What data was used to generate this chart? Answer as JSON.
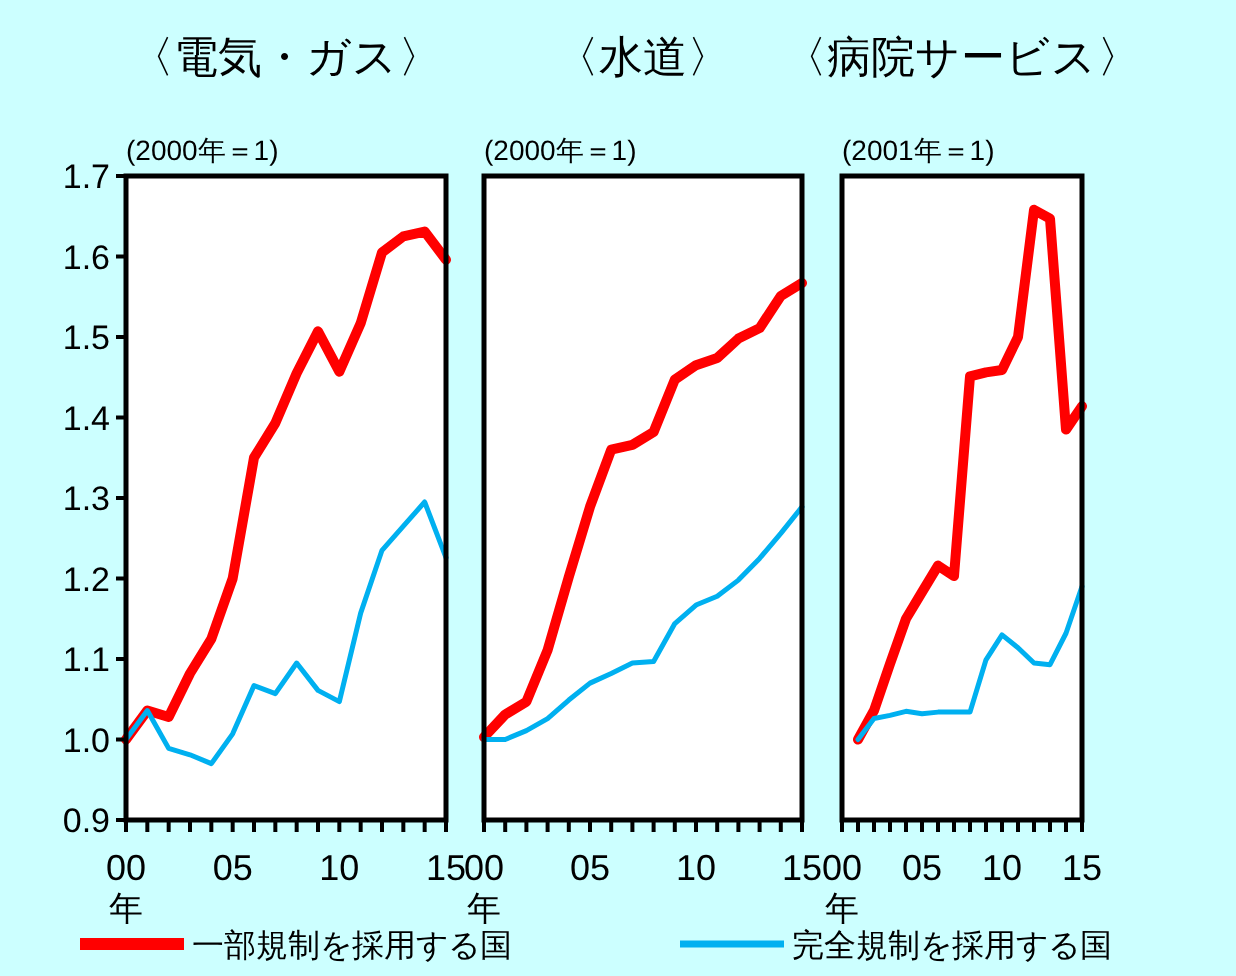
{
  "chart_data": [
    {
      "type": "line",
      "title": "〈電気・ガス〉",
      "subtitle": "(2000年＝1)",
      "xlabel": "年",
      "x": [
        2000,
        2001,
        2002,
        2003,
        2004,
        2005,
        2006,
        2007,
        2008,
        2009,
        2010,
        2011,
        2012,
        2013,
        2014,
        2015
      ],
      "xlim": [
        2000,
        2015
      ],
      "xticks": [
        {
          "value": 2000,
          "label": "00"
        },
        {
          "value": 2001,
          "label": null
        },
        {
          "value": 2002,
          "label": null
        },
        {
          "value": 2003,
          "label": null
        },
        {
          "value": 2004,
          "label": null
        },
        {
          "value": 2005,
          "label": "05"
        },
        {
          "value": 2006,
          "label": null
        },
        {
          "value": 2007,
          "label": null
        },
        {
          "value": 2008,
          "label": null
        },
        {
          "value": 2009,
          "label": null
        },
        {
          "value": 2010,
          "label": "10"
        },
        {
          "value": 2011,
          "label": null
        },
        {
          "value": 2012,
          "label": null
        },
        {
          "value": 2013,
          "label": null
        },
        {
          "value": 2014,
          "label": null
        },
        {
          "value": 2015,
          "label": "15"
        }
      ],
      "ylim": [
        0.9,
        1.7
      ],
      "yticks": [
        {
          "value": 0.9,
          "label": "0.9"
        },
        {
          "value": 1.0,
          "label": "1.0"
        },
        {
          "value": 1.1,
          "label": "1.1"
        },
        {
          "value": 1.2,
          "label": "1.2"
        },
        {
          "value": 1.3,
          "label": "1.3"
        },
        {
          "value": 1.4,
          "label": "1.4"
        },
        {
          "value": 1.5,
          "label": "1.5"
        },
        {
          "value": 1.6,
          "label": "1.6"
        },
        {
          "value": 1.7,
          "label": "1.7"
        }
      ],
      "grid": false,
      "legend": "bottom",
      "marker": "none",
      "line_style": "solid",
      "series": [
        {
          "name": "一部規制を採用する国",
          "color": "#ff0000",
          "values": [
            1.0,
            1.036,
            1.028,
            1.082,
            1.125,
            1.2,
            1.35,
            1.393,
            1.455,
            1.507,
            1.457,
            1.517,
            1.605,
            1.625,
            1.631,
            1.596
          ]
        },
        {
          "name": "完全規制を採用する国",
          "color": "#00b0f0",
          "values": [
            1.0,
            1.036,
            0.989,
            0.981,
            0.97,
            1.007,
            1.067,
            1.057,
            1.095,
            1.061,
            1.047,
            1.157,
            1.235,
            1.265,
            1.295,
            1.226
          ]
        }
      ]
    },
    {
      "type": "line",
      "title": "〈水道〉",
      "subtitle": "(2000年＝1)",
      "xlabel": "年",
      "x": [
        2000,
        2001,
        2002,
        2003,
        2004,
        2005,
        2006,
        2007,
        2008,
        2009,
        2010,
        2011,
        2012,
        2013,
        2014,
        2015
      ],
      "xlim": [
        2000,
        2015
      ],
      "xticks": [
        {
          "value": 2000,
          "label": "00"
        },
        {
          "value": 2001,
          "label": null
        },
        {
          "value": 2002,
          "label": null
        },
        {
          "value": 2003,
          "label": null
        },
        {
          "value": 2004,
          "label": null
        },
        {
          "value": 2005,
          "label": "05"
        },
        {
          "value": 2006,
          "label": null
        },
        {
          "value": 2007,
          "label": null
        },
        {
          "value": 2008,
          "label": null
        },
        {
          "value": 2009,
          "label": null
        },
        {
          "value": 2010,
          "label": "10"
        },
        {
          "value": 2011,
          "label": null
        },
        {
          "value": 2012,
          "label": null
        },
        {
          "value": 2013,
          "label": null
        },
        {
          "value": 2014,
          "label": null
        },
        {
          "value": 2015,
          "label": "15"
        }
      ],
      "ylim": [
        0.9,
        1.7
      ],
      "tick_labels": "x",
      "grid": false,
      "marker": "none",
      "line_style": "solid",
      "series": [
        {
          "color": "#ff0000",
          "values": [
            1.003,
            1.031,
            1.047,
            1.111,
            1.202,
            1.289,
            1.36,
            1.366,
            1.382,
            1.447,
            1.465,
            1.474,
            1.498,
            1.511,
            1.551,
            1.567
          ]
        },
        {
          "color": "#00b0f0",
          "values": [
            1.0,
            1.0,
            1.011,
            1.026,
            1.049,
            1.07,
            1.082,
            1.095,
            1.097,
            1.144,
            1.167,
            1.178,
            1.198,
            1.225,
            1.256,
            1.289
          ]
        }
      ]
    },
    {
      "type": "line",
      "title": "〈病院サービス〉",
      "subtitle": "(2001年＝1)",
      "xlabel": "年",
      "x": [
        2001,
        2002,
        2003,
        2004,
        2005,
        2006,
        2007,
        2008,
        2009,
        2010,
        2011,
        2012,
        2013,
        2014,
        2015
      ],
      "xlim": [
        2000,
        2015
      ],
      "xticks": [
        {
          "value": 2000,
          "label": "00"
        },
        {
          "value": 2001,
          "label": null
        },
        {
          "value": 2002,
          "label": null
        },
        {
          "value": 2003,
          "label": null
        },
        {
          "value": 2004,
          "label": null
        },
        {
          "value": 2005,
          "label": "05"
        },
        {
          "value": 2006,
          "label": null
        },
        {
          "value": 2007,
          "label": null
        },
        {
          "value": 2008,
          "label": null
        },
        {
          "value": 2009,
          "label": null
        },
        {
          "value": 2010,
          "label": "10"
        },
        {
          "value": 2011,
          "label": null
        },
        {
          "value": 2012,
          "label": null
        },
        {
          "value": 2013,
          "label": null
        },
        {
          "value": 2014,
          "label": null
        },
        {
          "value": 2015,
          "label": "15"
        }
      ],
      "ylim": [
        0.9,
        1.7
      ],
      "tick_labels": "x",
      "grid": false,
      "marker": "none",
      "line_style": "solid",
      "series": [
        {
          "color": "#ff0000",
          "values": [
            1.0,
            1.036,
            1.094,
            1.15,
            1.183,
            1.216,
            1.203,
            1.451,
            1.456,
            1.459,
            1.5,
            1.658,
            1.647,
            1.385,
            1.414
          ]
        },
        {
          "color": "#00b0f0",
          "values": [
            1.0,
            1.026,
            1.03,
            1.035,
            1.032,
            1.034,
            1.034,
            1.034,
            1.099,
            1.13,
            1.114,
            1.095,
            1.093,
            1.132,
            1.19
          ]
        }
      ]
    }
  ]
}
